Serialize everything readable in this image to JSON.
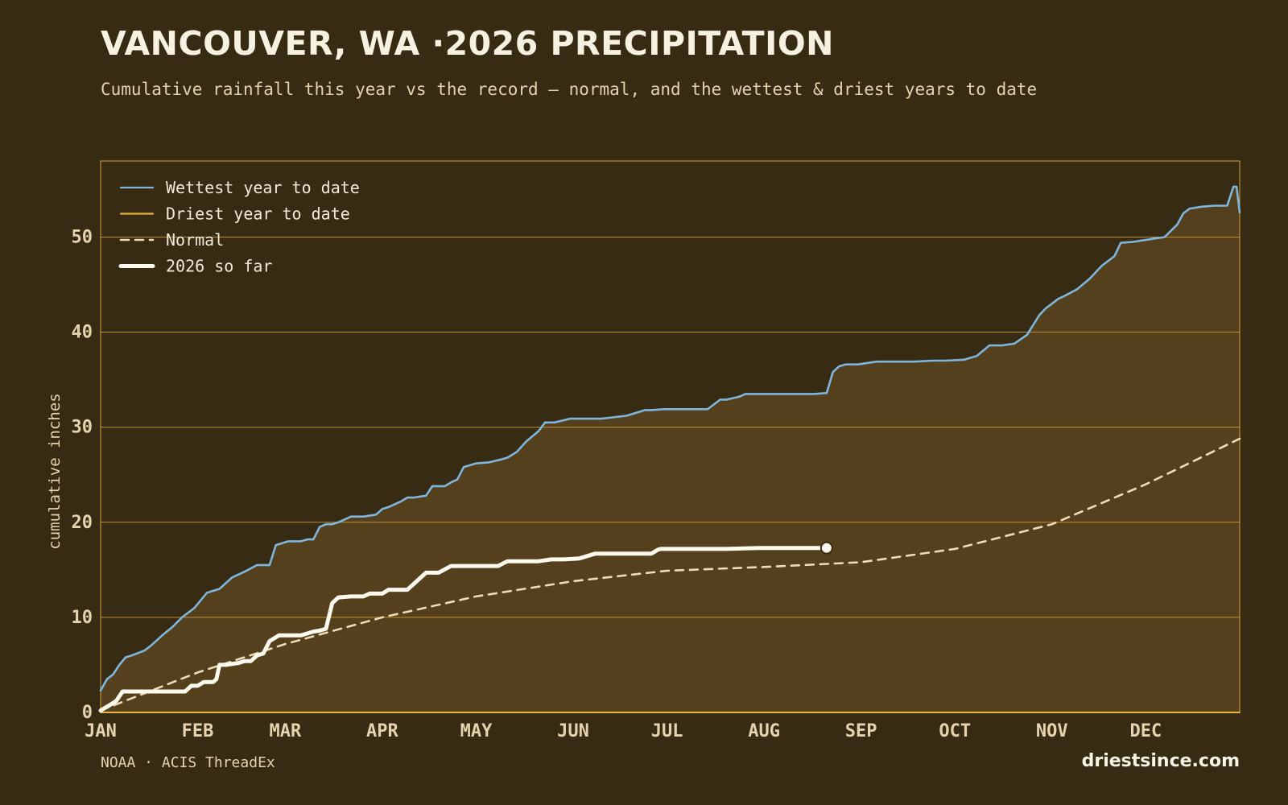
{
  "header": {
    "title": "VANCOUVER, WA ·2026 PRECIPITATION",
    "subtitle": "Cumulative rainfall this year vs the record — normal, and the wettest & driest years to date"
  },
  "footer": {
    "source": "NOAA · ACIS ThreadEx",
    "brand": "driestsince.com"
  },
  "colors": {
    "background": "#372b14",
    "plot_fill": "#54401d",
    "grid": "#d4a23c",
    "wettest": "#7fb6de",
    "driest": "#e6b23c",
    "normal": "#ecdcb8",
    "current": "#fffaf0",
    "tick_text": "#e6d2ad"
  },
  "chart_data": {
    "type": "line",
    "title": "VANCOUVER, WA ·2026 PRECIPITATION",
    "subtitle": "Cumulative rainfall this year vs the record — normal, and the wettest & driest years to date",
    "ylabel": "cumulative inches",
    "xlabel": "",
    "x_unit": "day of year",
    "xlim": [
      0,
      364
    ],
    "ylim": [
      0,
      58
    ],
    "yticks": [
      0,
      10,
      20,
      30,
      40,
      50
    ],
    "xticks": [
      {
        "label": "JAN",
        "day": 0
      },
      {
        "label": "FEB",
        "day": 31
      },
      {
        "label": "MAR",
        "day": 59
      },
      {
        "label": "APR",
        "day": 90
      },
      {
        "label": "MAY",
        "day": 120
      },
      {
        "label": "JUN",
        "day": 151
      },
      {
        "label": "JUL",
        "day": 181
      },
      {
        "label": "AUG",
        "day": 212
      },
      {
        "label": "SEP",
        "day": 243
      },
      {
        "label": "OCT",
        "day": 273
      },
      {
        "label": "NOV",
        "day": 304
      },
      {
        "label": "DEC",
        "day": 334
      }
    ],
    "grid": true,
    "legend_position": "top-left",
    "series": [
      {
        "name": "Wettest year to date",
        "style": "solid",
        "fill_below": true,
        "x": [
          0,
          2,
          4,
          6,
          8,
          10,
          14,
          16,
          20,
          23,
          26,
          30,
          34,
          38,
          42,
          46,
          50,
          54,
          56,
          60,
          64,
          66,
          68,
          70,
          72,
          74,
          76,
          80,
          84,
          88,
          90,
          92,
          96,
          98,
          100,
          104,
          106,
          110,
          112,
          114,
          116,
          120,
          124,
          128,
          130,
          133,
          136,
          140,
          142,
          145,
          150,
          155,
          160,
          168,
          174,
          176,
          180,
          186,
          190,
          194,
          198,
          200,
          204,
          206,
          210,
          216,
          220,
          228,
          232,
          234,
          236,
          238,
          242,
          248,
          254,
          260,
          266,
          270,
          276,
          280,
          284,
          288,
          292,
          296,
          300,
          302,
          304,
          306,
          308,
          312,
          316,
          320,
          324,
          326,
          330,
          336,
          340,
          344,
          346,
          348,
          352,
          356,
          360,
          362,
          363,
          364
        ],
        "values": [
          2.3,
          3.5,
          4.0,
          5.0,
          5.8,
          6.0,
          6.5,
          7.0,
          8.2,
          9.0,
          10.0,
          11.0,
          12.6,
          13.0,
          14.2,
          14.8,
          15.5,
          15.5,
          17.6,
          18.0,
          18.0,
          18.2,
          18.2,
          19.5,
          19.8,
          19.8,
          20.0,
          20.6,
          20.6,
          20.8,
          21.4,
          21.6,
          22.2,
          22.6,
          22.6,
          22.8,
          23.8,
          23.8,
          24.2,
          24.5,
          25.8,
          26.2,
          26.3,
          26.6,
          26.8,
          27.4,
          28.5,
          29.6,
          30.5,
          30.5,
          30.9,
          30.9,
          30.9,
          31.2,
          31.8,
          31.8,
          31.9,
          31.9,
          31.9,
          31.9,
          32.9,
          32.9,
          33.2,
          33.5,
          33.5,
          33.5,
          33.5,
          33.5,
          33.6,
          35.8,
          36.4,
          36.6,
          36.6,
          36.9,
          36.9,
          36.9,
          37.0,
          37.0,
          37.1,
          37.5,
          38.6,
          38.6,
          38.8,
          39.7,
          41.8,
          42.5,
          43.0,
          43.5,
          43.8,
          44.5,
          45.6,
          47.0,
          48.0,
          49.4,
          49.5,
          49.8,
          50.0,
          51.3,
          52.5,
          53.0,
          53.2,
          53.3,
          53.3,
          55.3,
          55.3,
          52.6
        ]
      },
      {
        "name": "Driest year to date",
        "style": "solid",
        "x": [
          0,
          364
        ],
        "values": [
          0,
          0
        ]
      },
      {
        "name": "Normal",
        "style": "dashed",
        "x": [
          0,
          31,
          59,
          90,
          120,
          151,
          181,
          212,
          243,
          273,
          304,
          334,
          364
        ],
        "values": [
          0.2,
          4.2,
          7.2,
          10.0,
          12.2,
          13.8,
          14.9,
          15.3,
          15.8,
          17.2,
          19.8,
          24.0,
          28.8
        ]
      },
      {
        "name": "2026 so far",
        "style": "bold",
        "x": [
          0,
          3,
          5,
          7,
          9,
          27,
          29,
          31,
          33,
          36,
          37,
          38,
          40,
          44,
          46,
          48,
          50,
          52,
          54,
          57,
          60,
          62,
          64,
          68,
          70,
          72,
          74,
          76,
          80,
          84,
          86,
          90,
          92,
          98,
          100,
          104,
          108,
          112,
          116,
          127,
          130,
          140,
          144,
          148,
          153,
          158,
          168,
          176,
          178,
          179,
          190,
          200,
          210,
          232
        ],
        "values": [
          0.2,
          0.8,
          1.2,
          2.2,
          2.2,
          2.2,
          2.8,
          2.8,
          3.2,
          3.2,
          3.5,
          5.0,
          5.0,
          5.2,
          5.4,
          5.4,
          6.0,
          6.2,
          7.5,
          8.1,
          8.1,
          8.1,
          8.1,
          8.5,
          8.6,
          8.8,
          11.5,
          12.1,
          12.2,
          12.2,
          12.5,
          12.5,
          12.9,
          12.9,
          13.5,
          14.7,
          14.7,
          15.4,
          15.4,
          15.4,
          15.9,
          15.9,
          16.1,
          16.1,
          16.2,
          16.7,
          16.7,
          16.7,
          17.1,
          17.2,
          17.2,
          17.2,
          17.3,
          17.3
        ]
      }
    ]
  }
}
